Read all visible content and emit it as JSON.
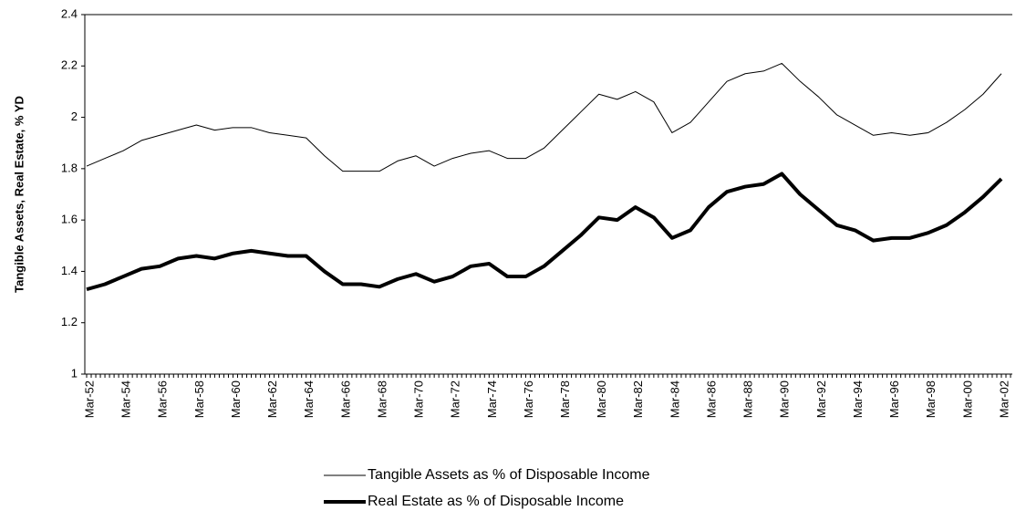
{
  "chart_data": {
    "type": "line",
    "y_label": "Tangible Assets, Real Estate, % YD",
    "categories": [
      "Mar-52",
      null,
      "Mar-54",
      null,
      "Mar-56",
      null,
      "Mar-58",
      null,
      "Mar-60",
      null,
      "Mar-62",
      null,
      "Mar-64",
      null,
      "Mar-66",
      null,
      "Mar-68",
      null,
      "Mar-70",
      null,
      "Mar-72",
      null,
      "Mar-74",
      null,
      "Mar-76",
      null,
      "Mar-78",
      null,
      "Mar-80",
      null,
      "Mar-82",
      null,
      "Mar-84",
      null,
      "Mar-86",
      null,
      "Mar-88",
      null,
      "Mar-90",
      null,
      "Mar-92",
      null,
      "Mar-94",
      null,
      "Mar-96",
      null,
      "Mar-98",
      null,
      "Mar-00",
      null,
      "Mar-02"
    ],
    "series": [
      {
        "name": "Tangible Assets as % of Disposable Income",
        "color": "#000000",
        "width": 1,
        "values": [
          1.81,
          1.84,
          1.87,
          1.91,
          1.93,
          1.95,
          1.97,
          1.95,
          1.96,
          1.96,
          1.94,
          1.93,
          1.92,
          1.85,
          1.79,
          1.79,
          1.79,
          1.83,
          1.85,
          1.81,
          1.84,
          1.86,
          1.87,
          1.84,
          1.84,
          1.88,
          1.95,
          2.02,
          2.09,
          2.07,
          2.1,
          2.06,
          1.94,
          1.98,
          2.06,
          2.14,
          2.17,
          2.18,
          2.21,
          2.14,
          2.08,
          2.01,
          1.97,
          1.93,
          1.94,
          1.93,
          1.94,
          1.98,
          2.03,
          2.09,
          2.17
        ]
      },
      {
        "name": "Real Estate as % of Disposable Income",
        "color": "#000000",
        "width": 4,
        "values": [
          1.33,
          1.35,
          1.38,
          1.41,
          1.42,
          1.45,
          1.46,
          1.45,
          1.47,
          1.48,
          1.47,
          1.46,
          1.46,
          1.4,
          1.35,
          1.35,
          1.34,
          1.37,
          1.39,
          1.36,
          1.38,
          1.42,
          1.43,
          1.38,
          1.38,
          1.42,
          1.48,
          1.54,
          1.61,
          1.6,
          1.65,
          1.61,
          1.53,
          1.56,
          1.65,
          1.71,
          1.73,
          1.74,
          1.78,
          1.7,
          1.64,
          1.58,
          1.56,
          1.52,
          1.53,
          1.53,
          1.55,
          1.58,
          1.63,
          1.69,
          1.76
        ]
      }
    ],
    "ylim": [
      1,
      2.4
    ],
    "yticks": [
      1,
      1.2,
      1.4,
      1.6,
      1.8,
      2,
      2.2,
      2.4
    ],
    "grid": false
  }
}
